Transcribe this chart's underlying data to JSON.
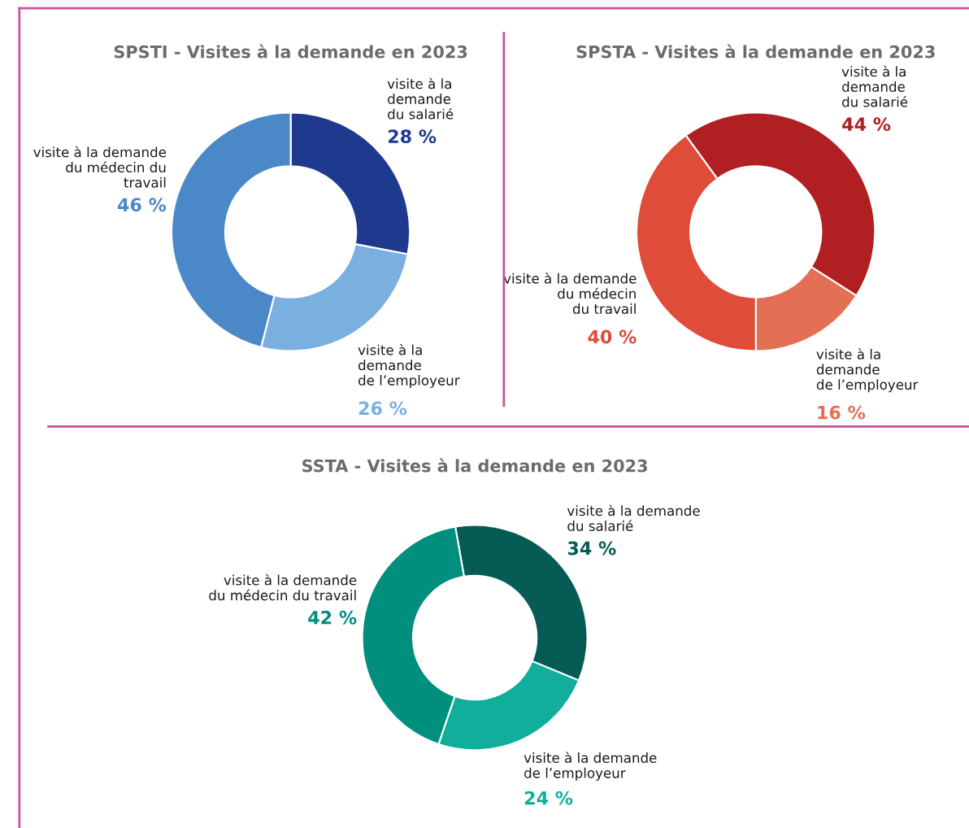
{
  "chart_data": [
    {
      "type": "donut",
      "title": "SPSTI - Visites à la demande en 2023",
      "categories": [
        "visite à la\ndemande\ndu salarié",
        "visite à la\ndemande\nde l’employeur",
        "visite à la demande\ndu médecin du\ntravail"
      ],
      "values": [
        28,
        26,
        46
      ],
      "colors": [
        "#1e3a8f",
        "#7ab0e0",
        "#4a88c8"
      ],
      "value_labels": [
        "28 %",
        "26 %",
        "46 %"
      ]
    },
    {
      "type": "donut",
      "title": "SPSTA - Visites à la demande en 2023",
      "categories": [
        "visite à la\ndemande\ndu salarié",
        "visite à la\ndemande\nde l’employeur",
        "visite à la demande\ndu médecin\ndu travail"
      ],
      "values": [
        44,
        16,
        40
      ],
      "colors": [
        "#b01f22",
        "#e37055",
        "#df4c3a"
      ],
      "value_labels": [
        "44 %",
        "16 %",
        "40 %"
      ]
    },
    {
      "type": "donut",
      "title": "SSTA - Visites à la demande en 2023",
      "categories": [
        "visite à la demande\ndu salarié",
        "visite à la demande\nde l’employeur",
        "visite à la demande\ndu médecin du travail"
      ],
      "values": [
        34,
        24,
        42
      ],
      "colors": [
        "#065c55",
        "#10ae9b",
        "#008f7d"
      ],
      "value_labels": [
        "34 %",
        "24 %",
        "42 %"
      ]
    }
  ]
}
